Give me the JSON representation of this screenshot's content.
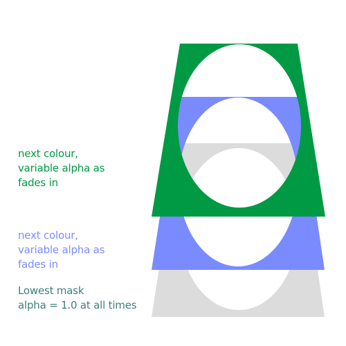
{
  "labels": {
    "green": {
      "lines": [
        "next colour,",
        "variable alpha as",
        "fades in"
      ],
      "color": "#009a44"
    },
    "blue": {
      "lines": [
        "next colour,",
        "variable alpha as",
        "fades in"
      ],
      "color": "#7b8cff"
    },
    "gray": {
      "lines": [
        "Lowest mask",
        "alpha = 1.0 at all times"
      ],
      "color": "#3e7f7c"
    }
  },
  "shapes": {
    "gray_fill": "#dcdcdc",
    "blue_fill": "#7a8bff",
    "green_fill": "#009a44",
    "hole_fill": "#ffffff"
  }
}
